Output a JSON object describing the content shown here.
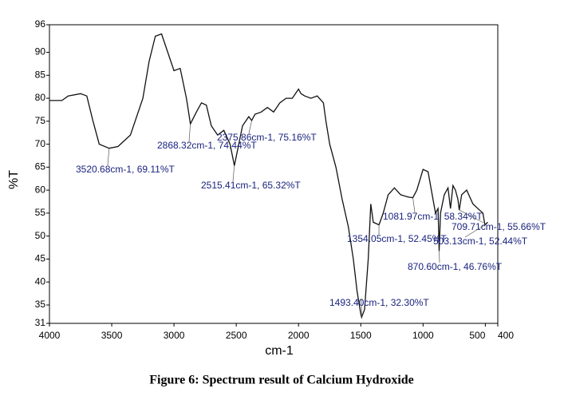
{
  "chart_data": {
    "type": "line",
    "caption": "Figure 6: Spectrum result of Calcium Hydroxide",
    "xlabel": "cm-1",
    "ylabel": "%T",
    "xlim": [
      4000,
      400
    ],
    "xticks": [
      4000,
      3500,
      3000,
      2500,
      2000,
      1500,
      1000,
      500,
      400
    ],
    "ylim": [
      31,
      96
    ],
    "yticks": [
      31,
      35,
      40,
      45,
      50,
      55,
      60,
      65,
      70,
      75,
      80,
      85,
      90,
      96
    ],
    "color": "#111111",
    "x": [
      4000,
      3900,
      3850,
      3750,
      3700,
      3650,
      3600,
      3520.68,
      3450,
      3350,
      3250,
      3200,
      3150,
      3100,
      3050,
      3000,
      2950,
      2900,
      2868.32,
      2820,
      2780,
      2740,
      2700,
      2650,
      2600,
      2550,
      2515.41,
      2480,
      2450,
      2400,
      2375.86,
      2350,
      2300,
      2250,
      2200,
      2150,
      2100,
      2050,
      2000,
      1980,
      1950,
      1900,
      1850,
      1800,
      1780,
      1750,
      1700,
      1650,
      1600,
      1560,
      1530,
      1500,
      1493.4,
      1470,
      1440,
      1420,
      1400,
      1354.05,
      1320,
      1280,
      1230,
      1180,
      1120,
      1081.97,
      1050,
      1000,
      960,
      920,
      900,
      880,
      870.6,
      860,
      830,
      800,
      780,
      760,
      740,
      720,
      709.71,
      690,
      650,
      600,
      560,
      520,
      503.13,
      480
    ],
    "values": [
      79.5,
      79.5,
      80.5,
      81,
      80.5,
      75,
      70,
      69.11,
      69.5,
      72,
      80,
      88,
      93.5,
      94,
      90,
      86,
      86.5,
      80,
      74.44,
      77,
      79,
      78.5,
      74,
      72,
      73,
      70,
      65.32,
      70,
      74,
      76,
      75.16,
      76.5,
      77,
      78,
      77,
      79,
      80,
      80,
      82,
      81,
      80.5,
      80,
      80.5,
      79,
      75,
      70,
      65,
      58,
      52,
      45,
      38,
      33,
      32.3,
      34,
      45,
      57,
      53,
      52.45,
      55,
      59,
      60.5,
      59,
      58.5,
      58.34,
      60,
      64.5,
      64,
      58,
      55,
      56,
      46.76,
      55,
      59,
      60.5,
      56,
      61,
      60,
      58,
      55.66,
      59,
      60,
      57,
      56,
      55,
      52.44,
      53
    ],
    "annotations": [
      {
        "label": "3520.68cm-1, 69.11%T",
        "x": 3520.68,
        "y": 69.11
      },
      {
        "label": "2868.32cm-1, 74.44%T",
        "x": 2868.32,
        "y": 74.44
      },
      {
        "label": "2375.86cm-1, 75.16%T",
        "x": 2375.86,
        "y": 75.16
      },
      {
        "label": "2515.41cm-1, 65.32%T",
        "x": 2515.41,
        "y": 65.32
      },
      {
        "label": "1493.40cm-1, 32.30%T",
        "x": 1493.4,
        "y": 32.3
      },
      {
        "label": "1354.05cm-1, 52.45%T",
        "x": 1354.05,
        "y": 52.45
      },
      {
        "label": "1081.97cm-1, 58.34%T",
        "x": 1081.97,
        "y": 58.34
      },
      {
        "label": "870.60cm-1, 46.76%T",
        "x": 870.6,
        "y": 46.76
      },
      {
        "label": "709.71cm-1, 55.66%T",
        "x": 709.71,
        "y": 55.66
      },
      {
        "label": "503.13cm-1, 52.44%T",
        "x": 503.13,
        "y": 52.44
      }
    ]
  }
}
